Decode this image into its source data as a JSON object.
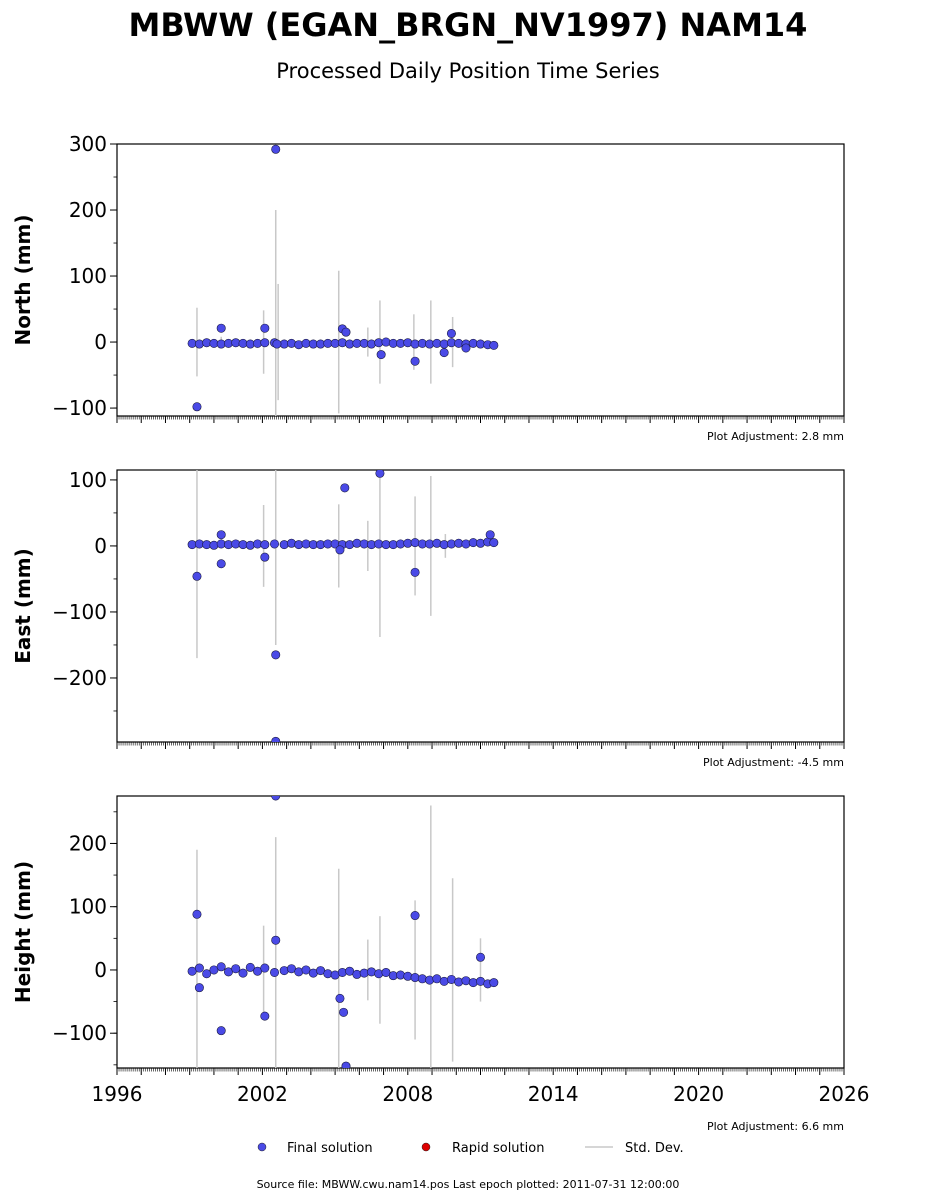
{
  "figure": {
    "title": "MBWW (EGAN_BRGN_NV1997) NAM14",
    "subtitle": "Processed Daily Position Time Series",
    "source_line": "Source file: MBWW.cwu.nam14.pos  Last epoch plotted: 2011-07-31 12:00:00"
  },
  "legend": {
    "final": "Final solution",
    "rapid": "Rapid solution",
    "std": "Std. Dev."
  },
  "colors": {
    "final": "#4a4ae6",
    "rapid": "#dd0000",
    "std": "#c8c8c8"
  },
  "chart_data": [
    {
      "type": "scatter",
      "ylabel": "North (mm)",
      "adjustment": "Plot Adjustment: 2.8 mm",
      "xlim": [
        1996,
        2026
      ],
      "ylim": [
        -112,
        300
      ],
      "yticks": [
        -100,
        0,
        100,
        200,
        300
      ],
      "ytick_labels": [
        "−100",
        "0",
        "100",
        "200",
        "300"
      ],
      "series": [
        {
          "points": [
            [
              1999.1,
              -2
            ],
            [
              1999.4,
              -3
            ],
            [
              1999.7,
              -1
            ],
            [
              2000.0,
              -2
            ],
            [
              2000.3,
              -3
            ],
            [
              2000.6,
              -2
            ],
            [
              2000.9,
              -1
            ],
            [
              2001.2,
              -2
            ],
            [
              2001.5,
              -3
            ],
            [
              2001.8,
              -2
            ],
            [
              2002.1,
              -1
            ],
            [
              2002.5,
              -1
            ],
            [
              2002.9,
              -3
            ],
            [
              2003.2,
              -2
            ],
            [
              2003.5,
              -4
            ],
            [
              2003.8,
              -2
            ],
            [
              2004.1,
              -3
            ],
            [
              2004.4,
              -3
            ],
            [
              2004.7,
              -2
            ],
            [
              2005.0,
              -2
            ],
            [
              2005.3,
              -1
            ],
            [
              2005.6,
              -3
            ],
            [
              2005.9,
              -2
            ],
            [
              2006.2,
              -2
            ],
            [
              2006.5,
              -3
            ],
            [
              2006.8,
              -1
            ],
            [
              2007.1,
              0
            ],
            [
              2007.4,
              -2
            ],
            [
              2007.7,
              -2
            ],
            [
              2008.0,
              -1
            ],
            [
              2008.3,
              -3
            ],
            [
              2008.6,
              -2
            ],
            [
              2008.9,
              -3
            ],
            [
              2009.2,
              -2
            ],
            [
              2009.5,
              -3
            ],
            [
              2009.8,
              -1
            ],
            [
              2010.1,
              -2
            ],
            [
              2010.4,
              -3
            ],
            [
              2010.7,
              -2
            ],
            [
              2011.0,
              -3
            ],
            [
              2011.3,
              -4
            ],
            [
              2011.55,
              -5
            ],
            [
              1999.3,
              -98
            ],
            [
              2000.3,
              21
            ],
            [
              2002.1,
              21
            ],
            [
              2002.55,
              292
            ],
            [
              2002.6,
              -3
            ],
            [
              2005.3,
              20
            ],
            [
              2005.45,
              15
            ],
            [
              2006.9,
              -19
            ],
            [
              2008.3,
              -29
            ],
            [
              2009.8,
              13
            ],
            [
              2009.5,
              -16
            ],
            [
              2010.4,
              -9
            ]
          ],
          "errors": [
            [
              1999.3,
              52
            ],
            [
              2000.3,
              8
            ],
            [
              2002.05,
              48
            ],
            [
              2002.55,
              200
            ],
            [
              2002.65,
              88
            ],
            [
              2005.15,
              108
            ],
            [
              2006.35,
              22
            ],
            [
              2006.85,
              63
            ],
            [
              2008.25,
              42
            ],
            [
              2008.95,
              63
            ],
            [
              2009.85,
              38
            ]
          ]
        }
      ]
    },
    {
      "type": "scatter",
      "ylabel": "East (mm)",
      "adjustment": "Plot Adjustment: -4.5 mm",
      "xlim": [
        1996,
        2026
      ],
      "ylim": [
        -297,
        115
      ],
      "yticks": [
        -200,
        -100,
        0,
        100
      ],
      "ytick_labels": [
        "−200",
        "−100",
        "0",
        "100"
      ],
      "series": [
        {
          "points": [
            [
              1999.1,
              2
            ],
            [
              1999.4,
              3
            ],
            [
              1999.7,
              2
            ],
            [
              2000.0,
              1
            ],
            [
              2000.3,
              3
            ],
            [
              2000.6,
              2
            ],
            [
              2000.9,
              3
            ],
            [
              2001.2,
              2
            ],
            [
              2001.5,
              1
            ],
            [
              2001.8,
              3
            ],
            [
              2002.1,
              2
            ],
            [
              2002.5,
              3
            ],
            [
              2002.9,
              2
            ],
            [
              2003.2,
              4
            ],
            [
              2003.5,
              2
            ],
            [
              2003.8,
              3
            ],
            [
              2004.1,
              2
            ],
            [
              2004.4,
              2
            ],
            [
              2004.7,
              3
            ],
            [
              2005.0,
              3
            ],
            [
              2005.3,
              2
            ],
            [
              2005.6,
              2
            ],
            [
              2005.9,
              4
            ],
            [
              2006.2,
              3
            ],
            [
              2006.5,
              2
            ],
            [
              2006.8,
              3
            ],
            [
              2007.1,
              2
            ],
            [
              2007.4,
              2
            ],
            [
              2007.7,
              3
            ],
            [
              2008.0,
              4
            ],
            [
              2008.3,
              5
            ],
            [
              2008.6,
              3
            ],
            [
              2008.9,
              3
            ],
            [
              2009.2,
              4
            ],
            [
              2009.5,
              2
            ],
            [
              2009.8,
              3
            ],
            [
              2010.1,
              4
            ],
            [
              2010.4,
              3
            ],
            [
              2010.7,
              5
            ],
            [
              2011.0,
              4
            ],
            [
              2011.3,
              6
            ],
            [
              2011.55,
              5
            ],
            [
              1999.3,
              -46
            ],
            [
              2000.3,
              17
            ],
            [
              2000.3,
              -27
            ],
            [
              2002.1,
              -17
            ],
            [
              2002.55,
              -165
            ],
            [
              2002.55,
              -296
            ],
            [
              2005.4,
              88
            ],
            [
              2006.85,
              110
            ],
            [
              2008.3,
              -40
            ],
            [
              2005.2,
              -6
            ],
            [
              2011.4,
              17
            ]
          ],
          "errors": [
            [
              1999.3,
              170
            ],
            [
              2002.05,
              62
            ],
            [
              2002.55,
              150
            ],
            [
              2005.15,
              63
            ],
            [
              2006.35,
              38
            ],
            [
              2006.85,
              138
            ],
            [
              2008.3,
              75
            ],
            [
              2008.95,
              106
            ],
            [
              2009.55,
              18
            ]
          ]
        }
      ]
    },
    {
      "type": "scatter",
      "ylabel": "Height (mm)",
      "adjustment": "Plot Adjustment: 6.6 mm",
      "xlim": [
        1996,
        2026
      ],
      "ylim": [
        -155,
        275
      ],
      "yticks": [
        -100,
        0,
        100,
        200
      ],
      "ytick_labels": [
        "−100",
        "0",
        "100",
        "200"
      ],
      "series": [
        {
          "points": [
            [
              1999.1,
              -2
            ],
            [
              1999.4,
              3
            ],
            [
              1999.7,
              -6
            ],
            [
              2000.0,
              0
            ],
            [
              2000.3,
              5
            ],
            [
              2000.6,
              -3
            ],
            [
              2000.9,
              2
            ],
            [
              2001.2,
              -5
            ],
            [
              2001.5,
              4
            ],
            [
              2001.8,
              -2
            ],
            [
              2002.1,
              3
            ],
            [
              2002.5,
              -4
            ],
            [
              2002.9,
              -1
            ],
            [
              2003.2,
              2
            ],
            [
              2003.5,
              -3
            ],
            [
              2003.8,
              0
            ],
            [
              2004.1,
              -5
            ],
            [
              2004.4,
              -1
            ],
            [
              2004.7,
              -6
            ],
            [
              2005.0,
              -8
            ],
            [
              2005.3,
              -4
            ],
            [
              2005.6,
              -2
            ],
            [
              2005.9,
              -7
            ],
            [
              2006.2,
              -5
            ],
            [
              2006.5,
              -3
            ],
            [
              2006.8,
              -6
            ],
            [
              2007.1,
              -4
            ],
            [
              2007.4,
              -9
            ],
            [
              2007.7,
              -8
            ],
            [
              2008.0,
              -10
            ],
            [
              2008.3,
              -12
            ],
            [
              2008.6,
              -14
            ],
            [
              2008.9,
              -16
            ],
            [
              2009.2,
              -14
            ],
            [
              2009.5,
              -18
            ],
            [
              2009.8,
              -15
            ],
            [
              2010.1,
              -19
            ],
            [
              2010.4,
              -17
            ],
            [
              2010.7,
              -20
            ],
            [
              2011.0,
              -18
            ],
            [
              2011.3,
              -22
            ],
            [
              2011.55,
              -20
            ],
            [
              1999.3,
              88
            ],
            [
              2000.3,
              -96
            ],
            [
              2002.1,
              -73
            ],
            [
              2002.55,
              275
            ],
            [
              2002.55,
              47
            ],
            [
              2005.2,
              -45
            ],
            [
              2005.35,
              -67
            ],
            [
              2005.45,
              -152
            ],
            [
              2008.3,
              86
            ],
            [
              2011.0,
              20
            ],
            [
              1999.4,
              -28
            ]
          ],
          "errors": [
            [
              1999.3,
              190
            ],
            [
              2002.05,
              70
            ],
            [
              2002.55,
              210
            ],
            [
              2005.15,
              160
            ],
            [
              2006.35,
              48
            ],
            [
              2006.85,
              85
            ],
            [
              2008.3,
              110
            ],
            [
              2008.95,
              260
            ],
            [
              2009.85,
              145
            ],
            [
              2011.0,
              50
            ]
          ]
        }
      ]
    }
  ],
  "xaxis": {
    "ticks": [
      1996,
      2002,
      2008,
      2014,
      2020,
      2026
    ],
    "tick_labels": [
      "1996",
      "2002",
      "2008",
      "2014",
      "2020",
      "2026"
    ]
  }
}
